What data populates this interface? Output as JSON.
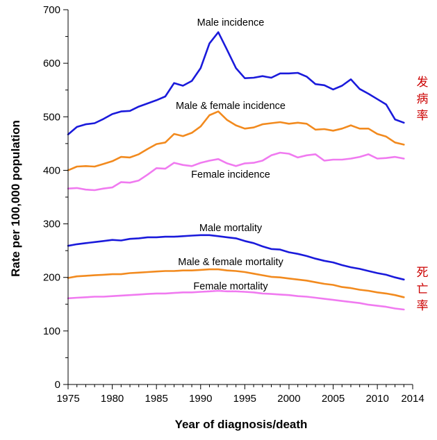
{
  "chart_data": {
    "type": "line",
    "xlabel": "Year of diagnosis/death",
    "ylabel": "Rate per 100,000 population",
    "xlim": [
      1975,
      2014
    ],
    "ylim": [
      0,
      700
    ],
    "x_ticks": [
      1975,
      1980,
      1985,
      1990,
      1995,
      2000,
      2005,
      2010,
      2014
    ],
    "y_ticks": [
      0,
      100,
      200,
      300,
      400,
      500,
      600,
      700
    ],
    "grid": false,
    "x": [
      1975,
      1976,
      1977,
      1978,
      1979,
      1980,
      1981,
      1982,
      1983,
      1984,
      1985,
      1986,
      1987,
      1988,
      1989,
      1990,
      1991,
      1992,
      1993,
      1994,
      1995,
      1996,
      1997,
      1998,
      1999,
      2000,
      2001,
      2002,
      2003,
      2004,
      2005,
      2006,
      2007,
      2008,
      2009,
      2010,
      2011,
      2012,
      2013
    ],
    "series": [
      {
        "name": "Male incidence",
        "color": "#1a1adb",
        "values": [
          467,
          481,
          486,
          488,
          496,
          505,
          510,
          511,
          519,
          525,
          531,
          538,
          563,
          558,
          567,
          591,
          637,
          658,
          625,
          591,
          572,
          573,
          576,
          573,
          581,
          581,
          582,
          575,
          561,
          559,
          551,
          558,
          570,
          552,
          543,
          533,
          523,
          495,
          489
        ]
      },
      {
        "name": "Male & female incidence",
        "color": "#f28a1e",
        "values": [
          400,
          407,
          408,
          407,
          412,
          417,
          425,
          424,
          430,
          440,
          449,
          452,
          468,
          464,
          470,
          482,
          503,
          510,
          494,
          484,
          478,
          480,
          486,
          488,
          490,
          487,
          489,
          487,
          476,
          477,
          474,
          478,
          484,
          478,
          478,
          468,
          463,
          452,
          448
        ]
      },
      {
        "name": "Female incidence",
        "color": "#f07af0",
        "values": [
          366,
          367,
          364,
          363,
          366,
          368,
          378,
          377,
          381,
          392,
          404,
          403,
          414,
          410,
          408,
          414,
          418,
          421,
          413,
          408,
          413,
          414,
          418,
          428,
          433,
          431,
          424,
          428,
          430,
          418,
          420,
          420,
          422,
          425,
          430,
          422,
          423,
          425,
          422
        ]
      },
      {
        "name": "Male mortality",
        "color": "#1a1adb",
        "values": [
          259,
          262,
          264,
          266,
          268,
          270,
          269,
          272,
          273,
          275,
          275,
          276,
          276,
          277,
          278,
          279,
          279,
          277,
          275,
          273,
          268,
          264,
          258,
          253,
          252,
          247,
          244,
          240,
          235,
          231,
          228,
          223,
          219,
          216,
          212,
          208,
          205,
          200,
          196
        ]
      },
      {
        "name": "Male & female mortality",
        "color": "#f28a1e",
        "values": [
          199,
          202,
          203,
          204,
          205,
          206,
          206,
          208,
          209,
          210,
          211,
          212,
          212,
          213,
          213,
          214,
          215,
          215,
          213,
          212,
          210,
          207,
          204,
          201,
          200,
          198,
          196,
          194,
          191,
          188,
          186,
          182,
          180,
          177,
          175,
          172,
          170,
          167,
          163
        ]
      },
      {
        "name": "Female mortality",
        "color": "#f07af0",
        "values": [
          161,
          162,
          163,
          164,
          164,
          165,
          166,
          167,
          168,
          169,
          170,
          170,
          171,
          172,
          172,
          173,
          174,
          175,
          174,
          174,
          173,
          172,
          170,
          169,
          168,
          167,
          165,
          164,
          162,
          160,
          158,
          156,
          154,
          152,
          149,
          147,
          145,
          142,
          140
        ]
      }
    ],
    "series_labels": [
      "Male incidence",
      "Male & female incidence",
      "Female incidence",
      "Male mortality",
      "Male & female mortality",
      "Female mortality"
    ],
    "annotations": {
      "incidence_cn": "发病率",
      "mortality_cn": "死亡率"
    }
  }
}
